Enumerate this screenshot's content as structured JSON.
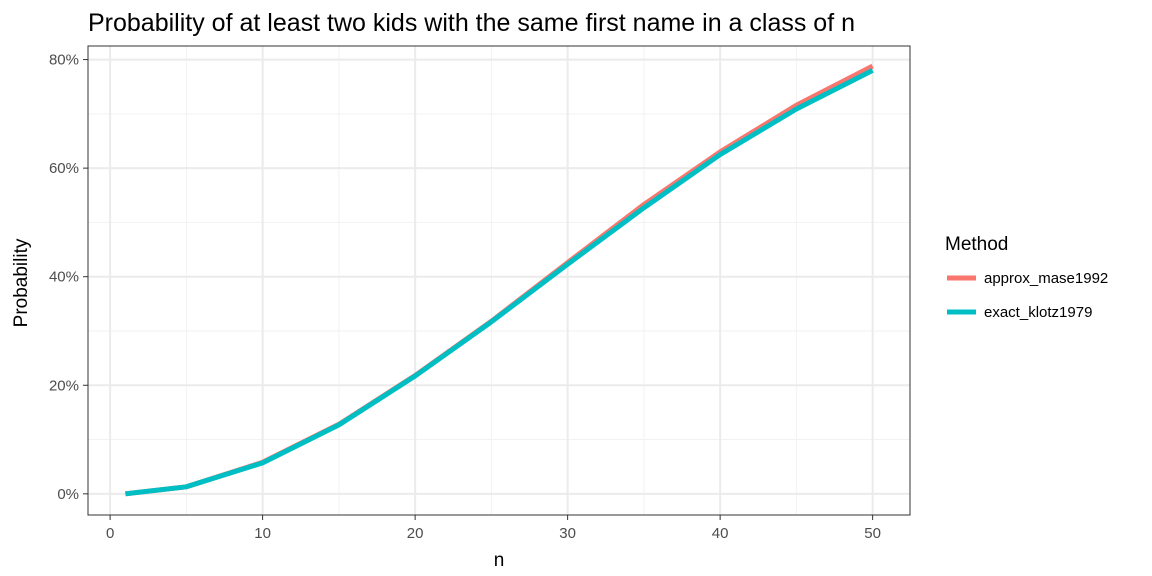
{
  "chart_data": {
    "type": "line",
    "title": "Probability of at least two kids with the same first name in a class of n",
    "xlabel": "n",
    "ylabel": "Probability",
    "xlim": [
      -1.45,
      52.45
    ],
    "ylim": [
      -0.039,
      0.825
    ],
    "x_ticks": [
      0,
      10,
      20,
      30,
      40,
      50
    ],
    "x_tick_labels": [
      "0",
      "10",
      "20",
      "30",
      "40",
      "50"
    ],
    "y_ticks": [
      0,
      0.2,
      0.4,
      0.6,
      0.8
    ],
    "y_tick_labels": [
      "0%",
      "20%",
      "40%",
      "60%",
      "80%"
    ],
    "grid": true,
    "legend": {
      "title": "Method",
      "position": "right"
    },
    "x": [
      1,
      5,
      10,
      15,
      20,
      25,
      30,
      35,
      40,
      45,
      50
    ],
    "series": [
      {
        "name": "approx_mase1992",
        "color": "#F8766D",
        "values": [
          0.0,
          0.013,
          0.058,
          0.128,
          0.218,
          0.318,
          0.426,
          0.533,
          0.63,
          0.716,
          0.788
        ]
      },
      {
        "name": "exact_klotz1979",
        "color": "#00BFC4",
        "values": [
          0.0,
          0.013,
          0.057,
          0.127,
          0.217,
          0.317,
          0.423,
          0.527,
          0.625,
          0.709,
          0.78
        ]
      }
    ]
  }
}
